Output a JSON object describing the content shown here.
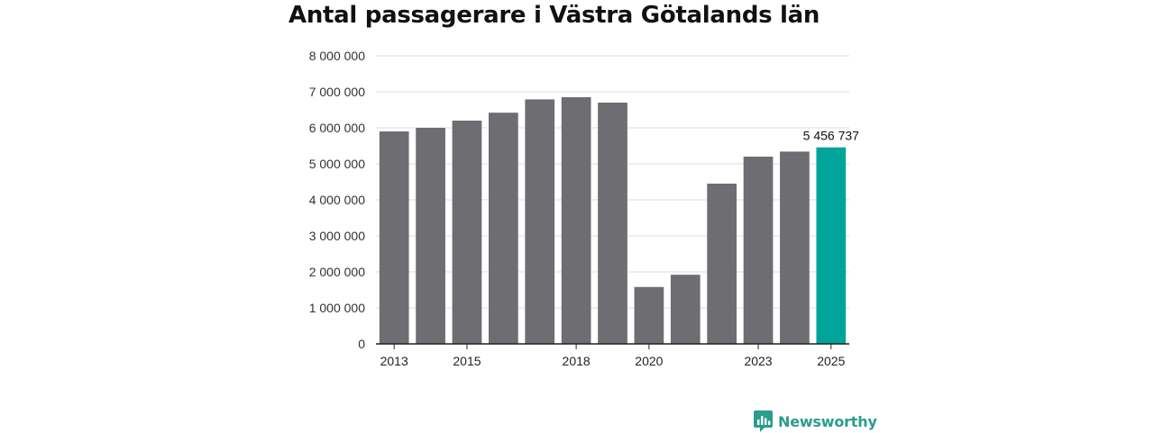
{
  "colors": {
    "bar": "#6d6d72",
    "highlight": "#00a49a",
    "grid": "#dddddd",
    "axis": "#222222",
    "brand": "#2a9d8f"
  },
  "logo": {
    "text": "Newsworthy",
    "icon": "newsworthy-logo-icon"
  },
  "chart_data": {
    "type": "bar",
    "title": "Antal passagerare i Västra Götalands län",
    "xlabel": "",
    "ylabel": "",
    "ylim": [
      0,
      8000000
    ],
    "yticks": [
      0,
      1000000,
      2000000,
      3000000,
      4000000,
      5000000,
      6000000,
      7000000,
      8000000
    ],
    "ytick_labels": [
      "0",
      "1 000 000",
      "2 000 000",
      "3 000 000",
      "4 000 000",
      "5 000 000",
      "6 000 000",
      "7 000 000",
      "8 000 000"
    ],
    "categories": [
      "2013",
      "2014",
      "2015",
      "2016",
      "2017",
      "2018",
      "2019",
      "2020",
      "2021",
      "2022",
      "2023",
      "2024",
      "2025"
    ],
    "xtick_labels": [
      "2013",
      "",
      "2015",
      "",
      "",
      "2018",
      "",
      "2020",
      "",
      "",
      "2023",
      "",
      "2025"
    ],
    "values": [
      5900000,
      6000000,
      6200000,
      6420000,
      6790000,
      6850000,
      6700000,
      1580000,
      1920000,
      4450000,
      5200000,
      5340000,
      5456737
    ],
    "highlight_index": 12,
    "data_labels": [
      {
        "index": 12,
        "text": "5 456 737"
      }
    ],
    "grid": true
  }
}
